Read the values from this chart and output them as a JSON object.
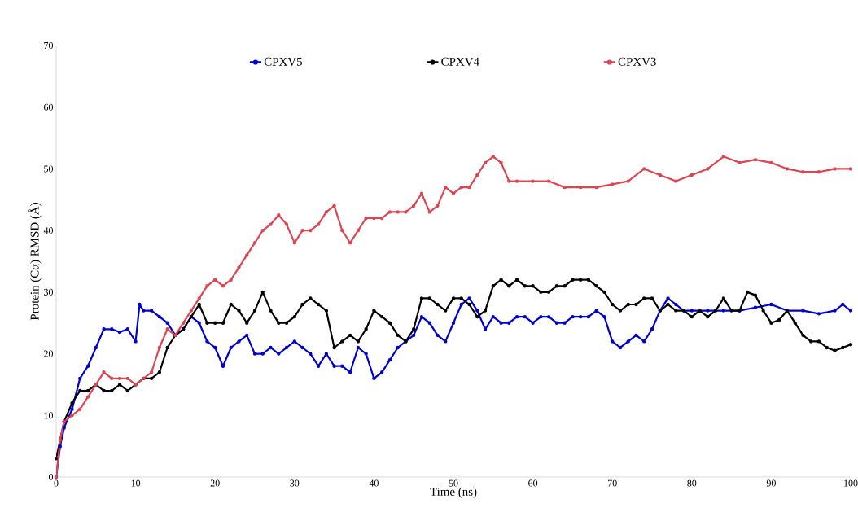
{
  "chart_data": {
    "type": "line",
    "xlabel": "Time (ns)",
    "ylabel": "Protein (Cα) RMSD (Å)",
    "xlim": [
      0,
      100
    ],
    "ylim": [
      0,
      70
    ],
    "xticks": [
      0,
      10,
      20,
      30,
      40,
      50,
      60,
      70,
      80,
      90,
      100
    ],
    "yticks": [
      0,
      10,
      20,
      30,
      40,
      50,
      60,
      70
    ],
    "grid": false,
    "legend": "top",
    "marker": "circle",
    "line_style": "solid",
    "series": [
      {
        "name": "CPXV5",
        "color": "#0000cc",
        "x": [
          0,
          0.5,
          1,
          2,
          3,
          4,
          5,
          6,
          7,
          8,
          9,
          10,
          10.5,
          11,
          12,
          13,
          14,
          15,
          16,
          17,
          18,
          19,
          20,
          21,
          22,
          23,
          24,
          25,
          26,
          27,
          28,
          29,
          30,
          31,
          32,
          33,
          34,
          35,
          36,
          37,
          38,
          39,
          40,
          41,
          42,
          43,
          44,
          45,
          46,
          47,
          48,
          49,
          50,
          51,
          52,
          53,
          54,
          55,
          56,
          57,
          58,
          59,
          60,
          61,
          62,
          63,
          64,
          65,
          66,
          67,
          68,
          69,
          70,
          71,
          72,
          73,
          74,
          75,
          76,
          77,
          78,
          79,
          80,
          82,
          84,
          86,
          88,
          90,
          92,
          94,
          96,
          98,
          99,
          100
        ],
        "values": [
          0,
          5,
          8,
          11,
          16,
          18,
          21,
          24,
          24,
          23.5,
          24,
          22,
          28,
          27,
          27,
          26,
          25,
          23,
          24,
          26,
          25,
          22,
          21,
          18,
          21,
          22,
          23,
          20,
          20,
          21,
          20,
          21,
          22,
          21,
          20,
          18,
          20,
          18,
          18,
          17,
          21,
          20,
          16,
          17,
          19,
          21,
          22,
          23,
          26,
          25,
          23,
          22,
          25,
          28,
          29,
          27,
          24,
          26,
          25,
          25,
          26,
          26,
          25,
          26,
          26,
          25,
          25,
          26,
          26,
          26,
          27,
          26,
          22,
          21,
          22,
          23,
          22,
          24,
          27,
          29,
          28,
          27,
          27,
          27,
          27,
          27,
          27.5,
          28,
          27,
          27,
          26.5,
          27,
          28,
          27
        ]
      },
      {
        "name": "CPXV4",
        "color": "#000000",
        "x": [
          0,
          1,
          2,
          3,
          4,
          5,
          6,
          7,
          8,
          9,
          10,
          11,
          12,
          13,
          14,
          15,
          16,
          17,
          18,
          19,
          20,
          21,
          22,
          23,
          24,
          25,
          26,
          27,
          28,
          29,
          30,
          31,
          32,
          33,
          34,
          35,
          36,
          37,
          38,
          39,
          40,
          41,
          42,
          43,
          44,
          45,
          46,
          47,
          48,
          49,
          50,
          51,
          52,
          53,
          54,
          55,
          56,
          57,
          58,
          59,
          60,
          61,
          62,
          63,
          64,
          65,
          66,
          67,
          68,
          69,
          70,
          71,
          72,
          73,
          74,
          75,
          76,
          77,
          78,
          79,
          80,
          81,
          82,
          83,
          84,
          85,
          86,
          87,
          88,
          89,
          90,
          91,
          92,
          93,
          94,
          95,
          96,
          97,
          98,
          99,
          100
        ],
        "values": [
          3,
          9,
          12,
          14,
          14,
          15,
          14,
          14,
          15,
          14,
          15,
          16,
          16,
          17,
          21,
          23,
          24,
          26,
          28,
          25,
          25,
          25,
          28,
          27,
          25,
          27,
          30,
          27,
          25,
          25,
          26,
          28,
          29,
          28,
          27,
          21,
          22,
          23,
          22,
          24,
          27,
          26,
          25,
          23,
          22,
          24,
          29,
          29,
          28,
          27,
          29,
          29,
          28,
          26,
          27,
          31,
          32,
          31,
          32,
          31,
          31,
          30,
          30,
          31,
          31,
          32,
          32,
          32,
          31,
          30,
          28,
          27,
          28,
          28,
          29,
          29,
          27,
          28,
          27,
          27,
          26,
          27,
          26,
          27,
          29,
          27,
          27,
          30,
          29.5,
          27,
          25,
          25.5,
          27,
          25,
          23,
          22,
          22,
          21,
          20.5,
          21,
          21.5
        ]
      },
      {
        "name": "CPXV3",
        "color": "#dc4653",
        "x": [
          0,
          0.5,
          1,
          2,
          3,
          4,
          5,
          6,
          7,
          8,
          9,
          10,
          11,
          12,
          13,
          14,
          15,
          16,
          17,
          18,
          19,
          20,
          21,
          22,
          23,
          24,
          25,
          26,
          27,
          28,
          29,
          30,
          31,
          32,
          33,
          34,
          35,
          36,
          37,
          38,
          39,
          40,
          41,
          42,
          43,
          44,
          45,
          46,
          47,
          48,
          49,
          50,
          51,
          52,
          53,
          54,
          55,
          56,
          57,
          58,
          60,
          62,
          64,
          66,
          68,
          70,
          72,
          74,
          76,
          78,
          80,
          82,
          84,
          86,
          88,
          90,
          92,
          94,
          96,
          98,
          100
        ],
        "values": [
          0,
          6,
          9,
          10,
          11,
          13,
          15,
          17,
          16,
          16,
          16,
          15,
          16,
          17,
          21,
          24,
          23,
          25,
          27,
          29,
          31,
          32,
          31,
          32,
          34,
          36,
          38,
          40,
          41,
          42.5,
          41,
          38,
          40,
          40,
          41,
          43,
          44,
          40,
          38,
          40,
          42,
          42,
          42,
          43,
          43,
          43,
          44,
          46,
          43,
          44,
          47,
          46,
          47,
          47,
          49,
          51,
          52,
          51,
          48,
          48,
          48,
          48,
          47,
          47,
          47,
          47.5,
          48,
          50,
          49,
          48,
          49,
          50,
          52,
          51,
          51.5,
          51,
          50,
          49.5,
          49.5,
          50,
          50
        ]
      }
    ]
  }
}
